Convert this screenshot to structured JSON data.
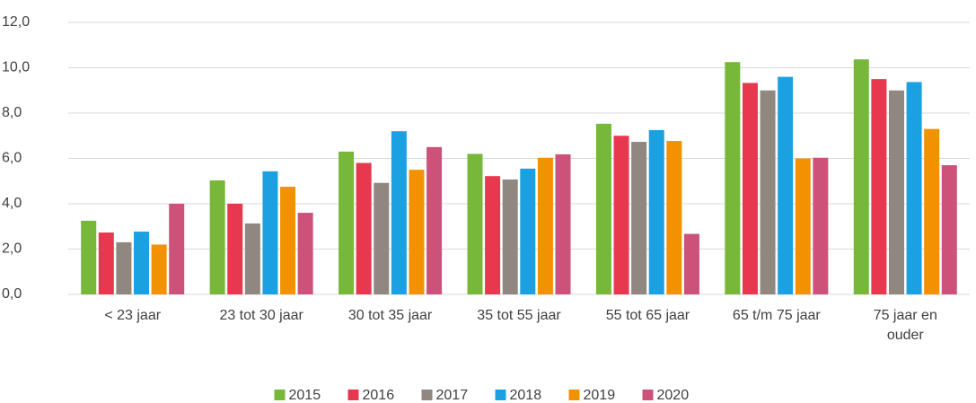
{
  "chart_data": {
    "type": "bar",
    "categories": [
      "< 23 jaar",
      "23 tot 30 jaar",
      "30 tot 35 jaar",
      "35 tot 55 jaar",
      "55 tot 65 jaar",
      "65 t/m 75 jaar",
      "75 jaar en ouder"
    ],
    "series": [
      {
        "name": "2015",
        "color": "#77b83a",
        "values": [
          3.25,
          5.03,
          6.3,
          6.2,
          7.53,
          10.25,
          10.37
        ]
      },
      {
        "name": "2016",
        "color": "#e8384f",
        "values": [
          2.73,
          4.0,
          5.8,
          5.22,
          7.0,
          9.33,
          9.5
        ]
      },
      {
        "name": "2017",
        "color": "#8f8780",
        "values": [
          2.3,
          3.13,
          4.92,
          5.07,
          6.73,
          9.0,
          9.0
        ]
      },
      {
        "name": "2018",
        "color": "#1ba1e2",
        "values": [
          2.77,
          5.43,
          7.2,
          5.55,
          7.25,
          9.6,
          9.37
        ]
      },
      {
        "name": "2019",
        "color": "#f39200",
        "values": [
          2.2,
          4.75,
          5.5,
          6.03,
          6.77,
          6.0,
          7.3
        ]
      },
      {
        "name": "2020",
        "color": "#cc527a",
        "values": [
          4.0,
          3.6,
          6.5,
          6.18,
          2.67,
          6.03,
          5.7
        ]
      }
    ],
    "ylim": [
      0,
      12
    ],
    "yticks": [
      {
        "value": 0,
        "label": "0,0"
      },
      {
        "value": 2,
        "label": "2,0"
      },
      {
        "value": 4,
        "label": "4,0"
      },
      {
        "value": 6,
        "label": "6,0"
      },
      {
        "value": 8,
        "label": "8,0"
      },
      {
        "value": 10,
        "label": "10,0"
      },
      {
        "value": 12,
        "label": "12,0"
      }
    ],
    "grid": true,
    "legend": "bottom"
  }
}
